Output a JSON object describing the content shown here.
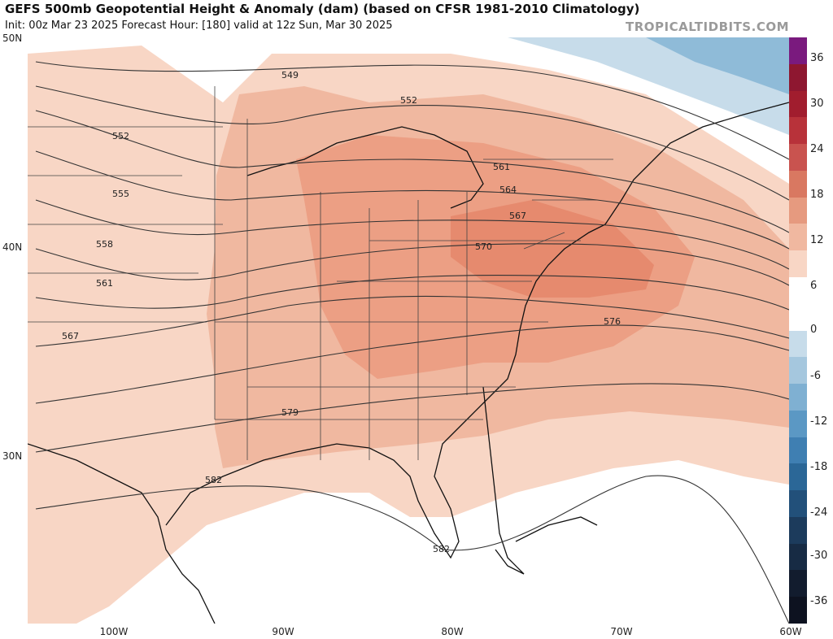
{
  "header": {
    "title": "GEFS 500mb Geopotential Height & Anomaly (dam) (based on CFSR 1981-2010 Climatology)",
    "subtitle": "Init: 00z Mar 23 2025   Forecast Hour: [180]   valid at 12z Sun, Mar 30 2025",
    "brand": "TROPICALTIDBITS.COM"
  },
  "map": {
    "lat_labels": [
      "50N",
      "40N",
      "30N"
    ],
    "lon_labels": [
      "100W",
      "90W",
      "80W",
      "70W",
      "60W"
    ],
    "contour_labels": [
      "549",
      "552",
      "552",
      "555",
      "558",
      "561",
      "561",
      "564",
      "567",
      "567",
      "570",
      "576",
      "579",
      "582",
      "582"
    ]
  },
  "colorbar": {
    "labels": [
      "36",
      "30",
      "24",
      "18",
      "12",
      "6",
      "0",
      "-6",
      "-12",
      "-18",
      "-24",
      "-30",
      "-36"
    ],
    "colors": [
      "#7a1a7e",
      "#8e1730",
      "#a11d2e",
      "#b8323a",
      "#c9534f",
      "#d97861",
      "#e69a7f",
      "#f0b8a0",
      "#f8d6c5",
      "#ffffff",
      "#ffffff",
      "#c7dcea",
      "#a5c7de",
      "#7fb0d2",
      "#5b98c4",
      "#3f7fb2",
      "#2b6797",
      "#22507a",
      "#1c3b5c",
      "#172b44",
      "#121c2e",
      "#0d1220"
    ]
  }
}
